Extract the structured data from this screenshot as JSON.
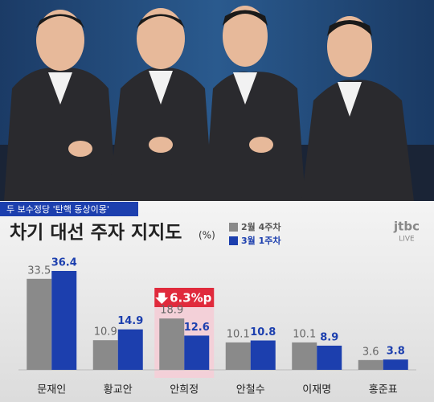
{
  "ticker": "두 보수정당 '탄핵 동상이몽'",
  "logo": {
    "brand": "jtbc",
    "status": "LIVE"
  },
  "chart_data": {
    "type": "bar",
    "title": "차기 대선 주자 지지도",
    "unit": "(%)",
    "categories": [
      "문재인",
      "황교안",
      "안희정",
      "안철수",
      "이재명",
      "홍준표"
    ],
    "series": [
      {
        "name": "2월 4주차",
        "color": "#8a8a8a",
        "values": [
          33.5,
          10.9,
          18.9,
          10.1,
          10.1,
          3.6
        ]
      },
      {
        "name": "3월 1주차",
        "color": "#1c3fae",
        "values": [
          36.4,
          14.9,
          12.6,
          10.8,
          8.9,
          3.8
        ]
      }
    ],
    "annotation": {
      "label": "6.3%p",
      "category": "안희정"
    }
  }
}
